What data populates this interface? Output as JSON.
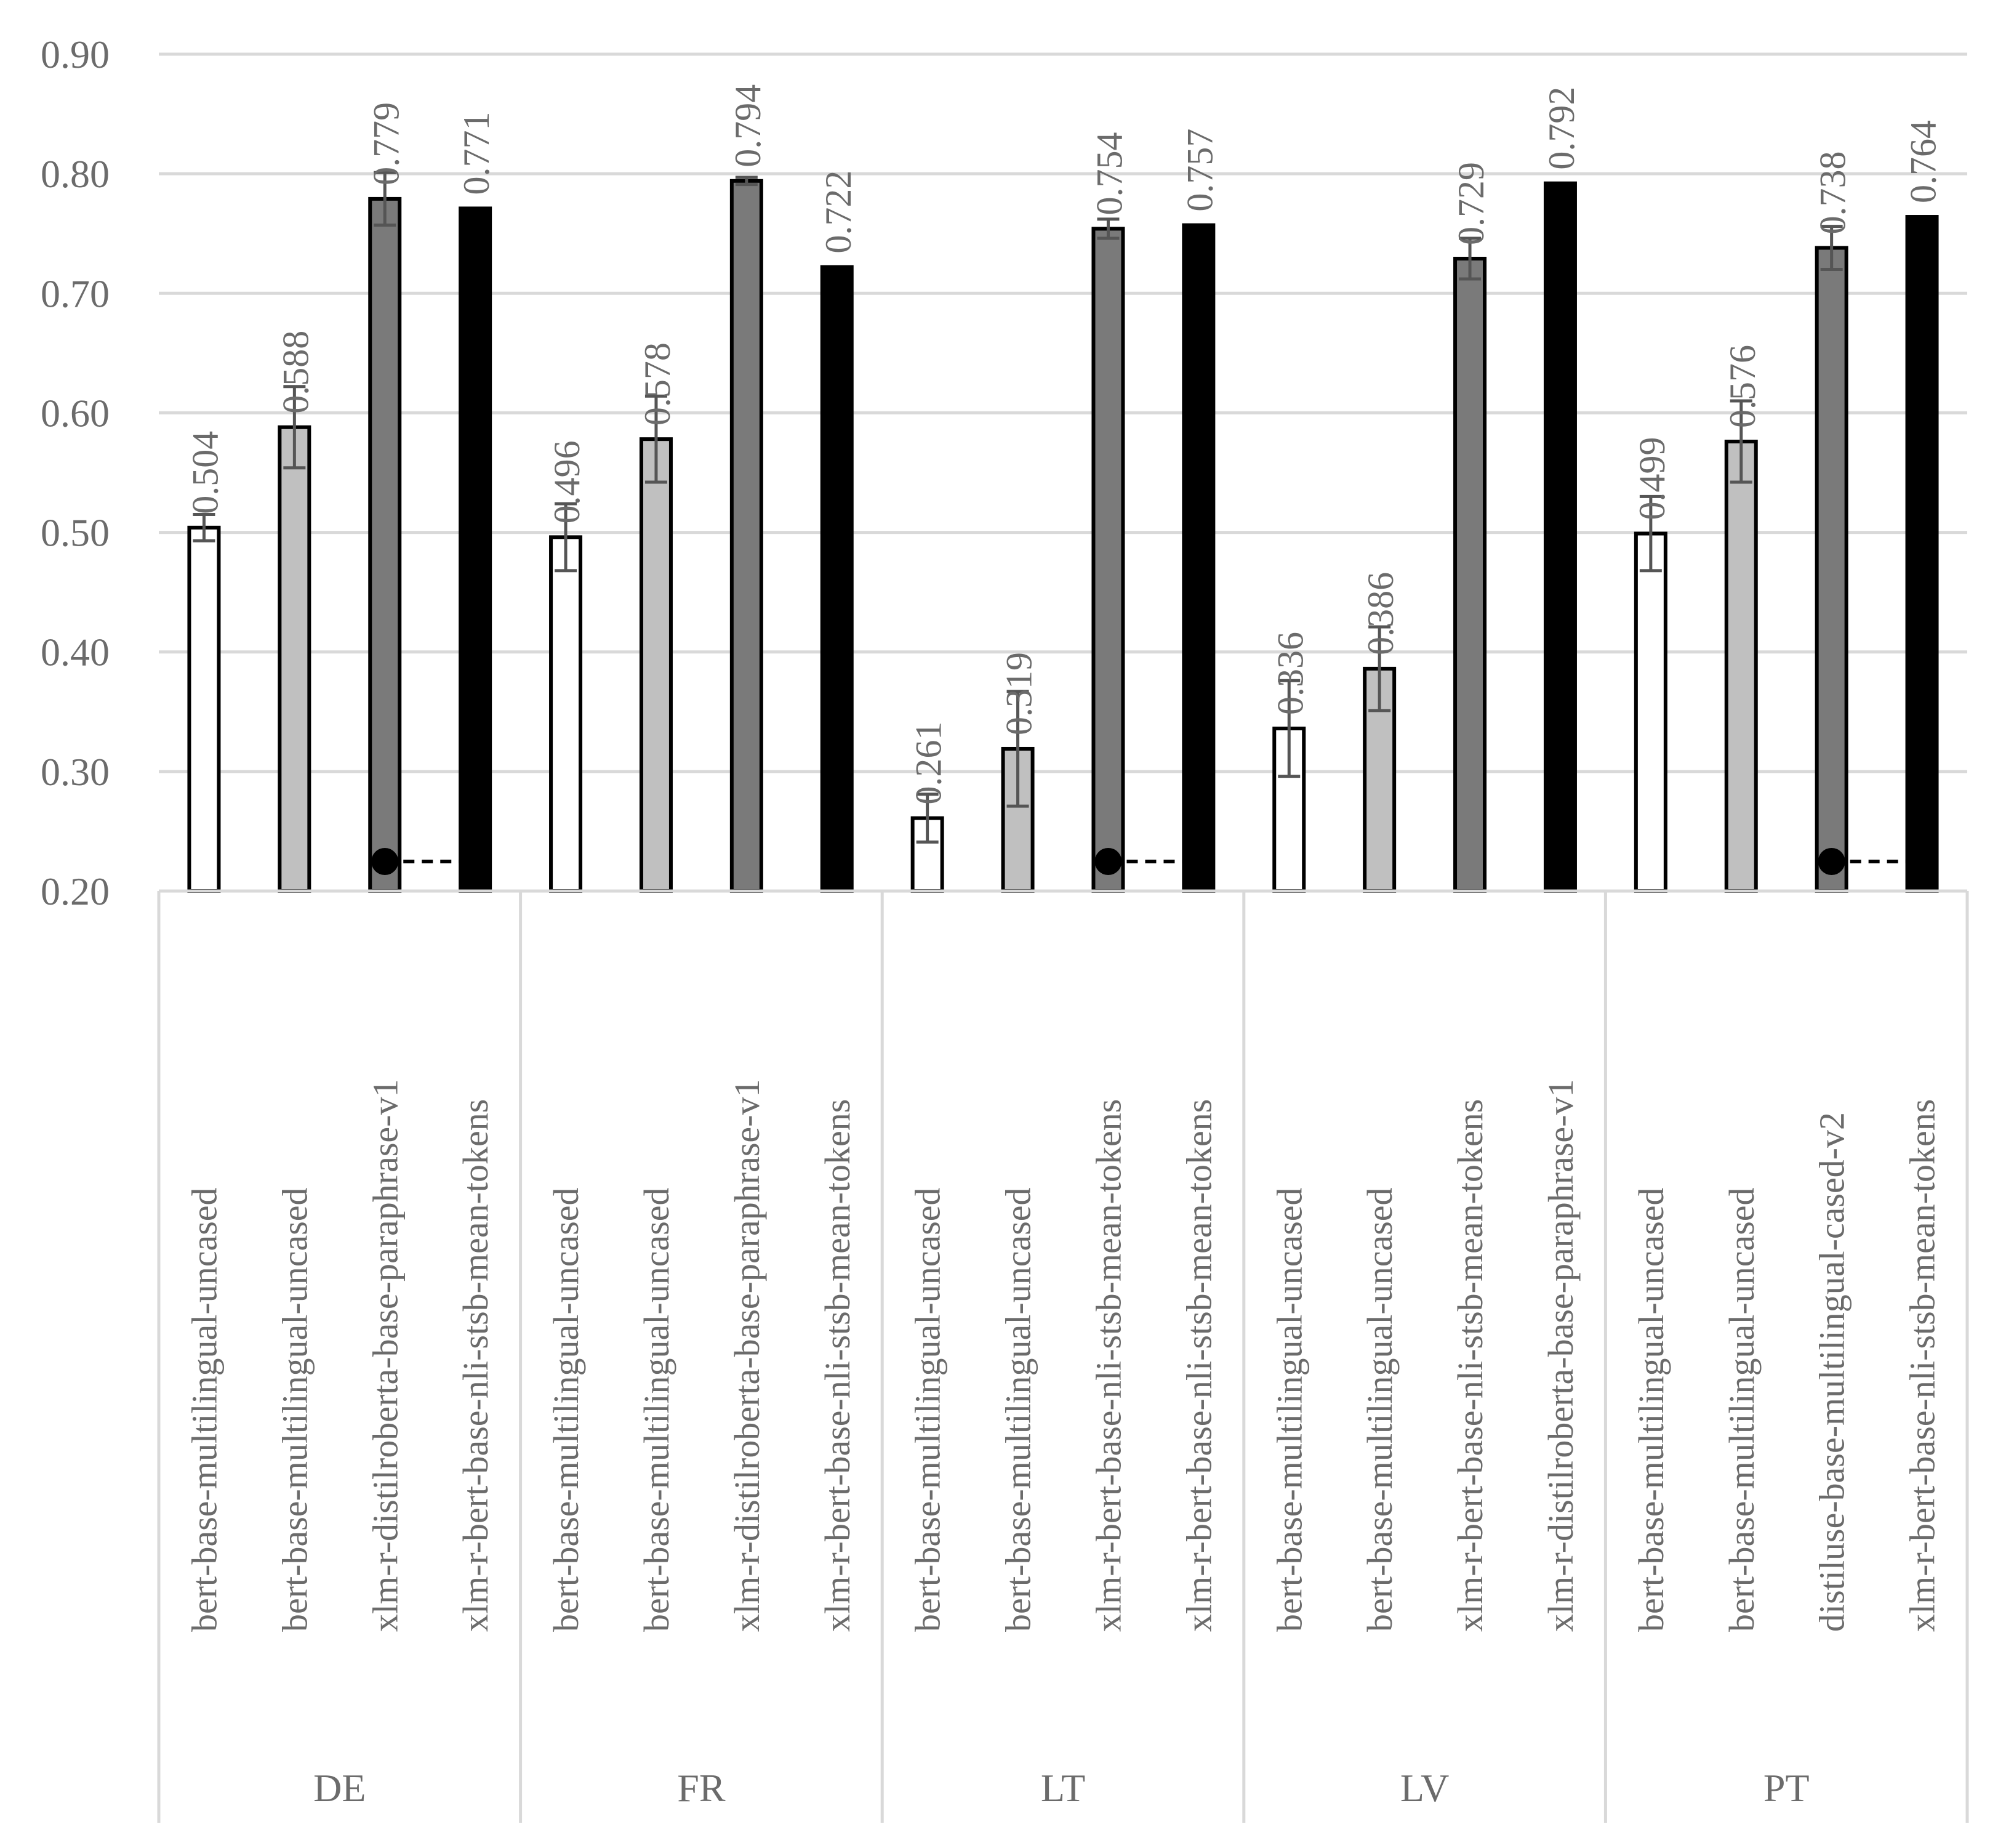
{
  "chart_data": {
    "type": "bar",
    "title": "",
    "xlabel": "",
    "ylabel": "",
    "ylim": [
      0.2,
      0.9
    ],
    "yticks": [
      "0.20",
      "0.30",
      "0.40",
      "0.50",
      "0.60",
      "0.70",
      "0.80",
      "0.90"
    ],
    "grid": true,
    "groups": [
      {
        "name": "DE",
        "bars": [
          {
            "label": "bert-base-multilingual-uncased",
            "value": 0.504,
            "value_label": "0.504",
            "err": 0.011,
            "fill": "#ffffff"
          },
          {
            "label": "bert-base-multilingual-uncased",
            "value": 0.588,
            "value_label": "0.588",
            "err": 0.034,
            "fill": "#c0c0c0"
          },
          {
            "label": "xlm-r-distilroberta-base-paraphrase-v1",
            "value": 0.779,
            "value_label": "0.779",
            "err": 0.022,
            "fill": "#7a7a7a"
          },
          {
            "label": "xlm-r-bert-base-nli-stsb-mean-tokens",
            "value": 0.771,
            "value_label": "0.771",
            "err": 0.0,
            "fill": "#000000"
          }
        ],
        "sig_bracket": [
          2,
          3
        ]
      },
      {
        "name": "FR",
        "bars": [
          {
            "label": "bert-base-multilingual-uncased",
            "value": 0.496,
            "value_label": "0.496",
            "err": 0.028,
            "fill": "#ffffff"
          },
          {
            "label": "bert-base-multilingual-uncased",
            "value": 0.578,
            "value_label": "0.578",
            "err": 0.036,
            "fill": "#c0c0c0"
          },
          {
            "label": "xlm-r-distilroberta-base-paraphrase-v1",
            "value": 0.794,
            "value_label": "0.794",
            "err": 0.003,
            "fill": "#7a7a7a"
          },
          {
            "label": "xlm-r-bert-base-nli-stsb-mean-tokens",
            "value": 0.722,
            "value_label": "0.722",
            "err": 0.0,
            "fill": "#000000"
          }
        ],
        "sig_bracket": null
      },
      {
        "name": "LT",
        "bars": [
          {
            "label": "bert-base-multilingual-uncased",
            "value": 0.261,
            "value_label": "0.261",
            "err": 0.02,
            "fill": "#ffffff"
          },
          {
            "label": "bert-base-multilingual-uncased",
            "value": 0.319,
            "value_label": "0.319",
            "err": 0.048,
            "fill": "#c0c0c0"
          },
          {
            "label": "xlm-r-bert-base-nli-stsb-mean-tokens",
            "value": 0.754,
            "value_label": "0.754",
            "err": 0.008,
            "fill": "#7a7a7a"
          },
          {
            "label": "xlm-r-bert-base-nli-stsb-mean-tokens",
            "value": 0.757,
            "value_label": "0.757",
            "err": 0.0,
            "fill": "#000000"
          }
        ],
        "sig_bracket": [
          2,
          3
        ]
      },
      {
        "name": "LV",
        "bars": [
          {
            "label": "bert-base-multilingual-uncased",
            "value": 0.336,
            "value_label": "0.336",
            "err": 0.04,
            "fill": "#ffffff"
          },
          {
            "label": "bert-base-multilingual-uncased",
            "value": 0.386,
            "value_label": "0.386",
            "err": 0.035,
            "fill": "#c0c0c0"
          },
          {
            "label": "xlm-r-bert-base-nli-stsb-mean-tokens",
            "value": 0.729,
            "value_label": "0.729",
            "err": 0.017,
            "fill": "#7a7a7a"
          },
          {
            "label": "xlm-r-distilroberta-base-paraphrase-v1",
            "value": 0.792,
            "value_label": "0.792",
            "err": 0.0,
            "fill": "#000000"
          }
        ],
        "sig_bracket": null
      },
      {
        "name": "PT",
        "bars": [
          {
            "label": "bert-base-multilingual-uncased",
            "value": 0.499,
            "value_label": "0.499",
            "err": 0.031,
            "fill": "#ffffff"
          },
          {
            "label": "bert-base-multilingual-uncased",
            "value": 0.576,
            "value_label": "0.576",
            "err": 0.034,
            "fill": "#c0c0c0"
          },
          {
            "label": "distiluse-base-multilingual-cased-v2",
            "value": 0.738,
            "value_label": "0.738",
            "err": 0.018,
            "fill": "#7a7a7a"
          },
          {
            "label": "xlm-r-bert-base-nli-stsb-mean-tokens",
            "value": 0.764,
            "value_label": "0.764",
            "err": 0.0,
            "fill": "#000000"
          }
        ],
        "sig_bracket": [
          2,
          3
        ]
      }
    ]
  }
}
